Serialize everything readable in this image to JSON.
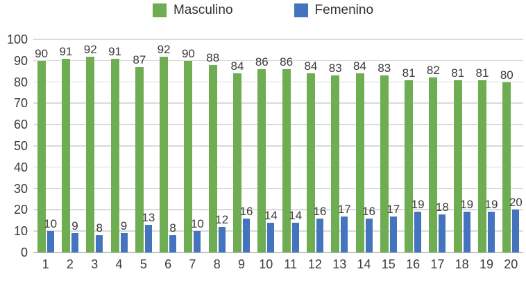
{
  "legend": {
    "items": [
      {
        "label": "Masculino",
        "swatch": "green-square"
      },
      {
        "label": "Femenino",
        "swatch": "blue-square"
      }
    ]
  },
  "colors": {
    "masculino": "#6ead51",
    "femenino": "#4374bd",
    "gridline": "#d9d9d9",
    "text": "#3b3b3b"
  },
  "chart_data": {
    "type": "bar",
    "title": "",
    "xlabel": "",
    "ylabel": "",
    "categories": [
      "1",
      "2",
      "3",
      "4",
      "5",
      "6",
      "7",
      "8",
      "9",
      "10",
      "11",
      "12",
      "13",
      "14",
      "15",
      "16",
      "17",
      "18",
      "19",
      "20"
    ],
    "series": [
      {
        "name": "Masculino",
        "color": "#6ead51",
        "values": [
          90,
          91,
          92,
          91,
          87,
          92,
          90,
          88,
          84,
          86,
          86,
          84,
          83,
          84,
          83,
          81,
          82,
          81,
          81,
          80
        ]
      },
      {
        "name": "Femenino",
        "color": "#4374bd",
        "values": [
          10,
          9,
          8,
          9,
          13,
          8,
          10,
          12,
          16,
          14,
          14,
          16,
          17,
          16,
          17,
          19,
          18,
          19,
          19,
          20
        ]
      }
    ],
    "ylim": [
      0,
      100
    ],
    "ytick_step": 10,
    "yticks": [
      0,
      10,
      20,
      30,
      40,
      50,
      60,
      70,
      80,
      90,
      100
    ],
    "grid": "horizontal",
    "legend_position": "top",
    "data_labels": true
  }
}
